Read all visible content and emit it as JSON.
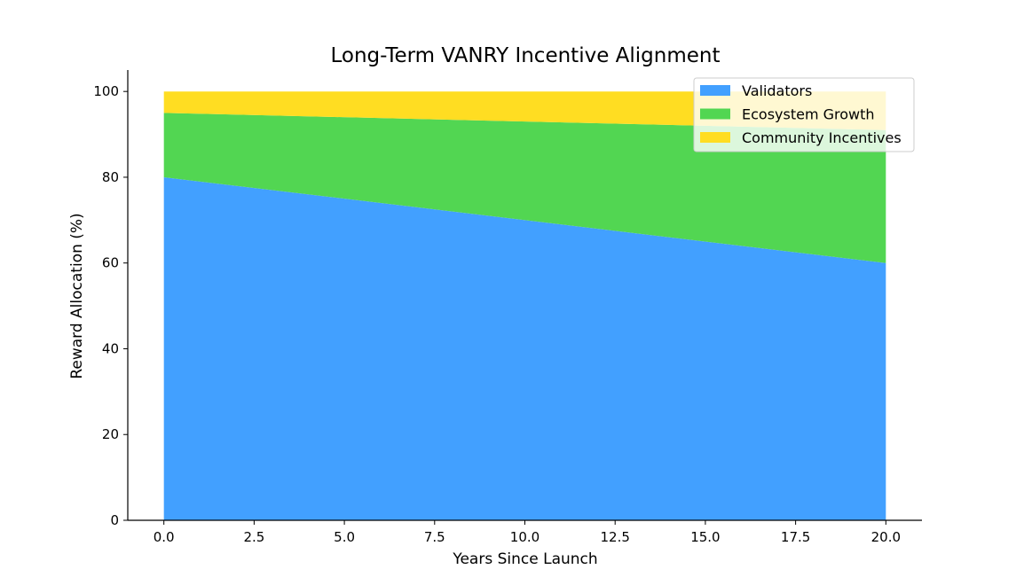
{
  "chart_data": {
    "type": "area",
    "title": "Long-Term VANRY Incentive Alignment",
    "xlabel": "Years Since Launch",
    "ylabel": "Reward Allocation (%)",
    "x": [
      0,
      20
    ],
    "series": [
      {
        "name": "Validators",
        "values": [
          80,
          60
        ],
        "color": "#42a0ff"
      },
      {
        "name": "Ecosystem Growth",
        "values": [
          15,
          31
        ],
        "color": "#52d652"
      },
      {
        "name": "Community Incentives",
        "values": [
          5,
          9
        ],
        "color": "#ffdd22"
      }
    ],
    "xlim": [
      -1,
      21
    ],
    "ylim": [
      0,
      105
    ],
    "xticks": [
      0,
      2.5,
      5,
      7.5,
      10,
      12.5,
      15,
      17.5,
      20
    ],
    "xtick_labels": [
      "0.0",
      "2.5",
      "5.0",
      "7.5",
      "10.0",
      "12.5",
      "15.0",
      "17.5",
      "20.0"
    ],
    "yticks": [
      0,
      20,
      40,
      60,
      80,
      100
    ],
    "ytick_labels": [
      "0",
      "20",
      "40",
      "60",
      "80",
      "100"
    ],
    "legend_position": "top-right",
    "grid": false
  }
}
